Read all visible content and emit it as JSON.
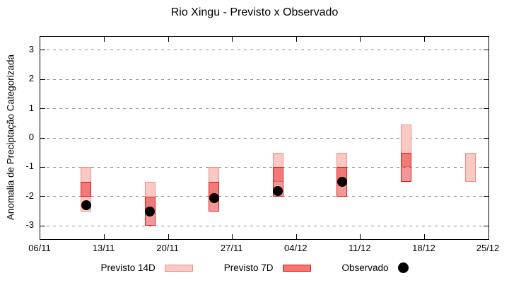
{
  "window": {
    "title": "Rio Xingu - Previsto x Observado"
  },
  "chart_data": {
    "type": "bar",
    "subtype": "forecast-range-boxes-with-observed-scatter",
    "title": "Rio Xingu - Previsto x Observado",
    "xlabel": "",
    "ylabel": "Anomalia de Preciptação Categorizada",
    "ylim": [
      -3.45,
      3.45
    ],
    "yticks": [
      3,
      2,
      1,
      0,
      -1,
      -2,
      -3
    ],
    "grid": true,
    "x_total_days": 49,
    "xticks": [
      {
        "day": 0,
        "label": "06/11"
      },
      {
        "day": 7,
        "label": "13/11"
      },
      {
        "day": 14,
        "label": "20/11"
      },
      {
        "day": 21,
        "label": "27/11"
      },
      {
        "day": 28,
        "label": "04/12"
      },
      {
        "day": 35,
        "label": "11/12"
      },
      {
        "day": 42,
        "label": "18/12"
      },
      {
        "day": 49,
        "label": "25/12"
      }
    ],
    "series": [
      {
        "name": "Previsto 14D",
        "kind": "range-box",
        "fill": "#fbc9c4",
        "border": "#ef8d85",
        "points": [
          {
            "day": 5,
            "date": "11/11",
            "high": -1.0,
            "low": -2.5
          },
          {
            "day": 12,
            "date": "18/11",
            "high": -1.5,
            "low": -2.5
          },
          {
            "day": 19,
            "date": "25/11",
            "high": -1.0,
            "low": -2.0
          },
          {
            "day": 26,
            "date": "02/12",
            "high": -0.5,
            "low": -1.5
          },
          {
            "day": 33,
            "date": "09/12",
            "high": -0.5,
            "low": -1.5
          },
          {
            "day": 40,
            "date": "16/12",
            "high": 0.45,
            "low": -1.0
          },
          {
            "day": 47,
            "date": "23/12",
            "high": -0.5,
            "low": -1.5
          }
        ]
      },
      {
        "name": "Previsto 7D",
        "kind": "range-box",
        "fill": "rgba(227,26,28,0.45)",
        "border": "#e31a1c",
        "points": [
          {
            "day": 5,
            "date": "11/11",
            "high": -1.5,
            "low": -2.0
          },
          {
            "day": 12,
            "date": "18/11",
            "high": -2.0,
            "low": -3.0
          },
          {
            "day": 19,
            "date": "25/11",
            "high": -1.5,
            "low": -2.5
          },
          {
            "day": 26,
            "date": "02/12",
            "high": -1.0,
            "low": -2.0
          },
          {
            "day": 33,
            "date": "09/12",
            "high": -1.0,
            "low": -2.0
          },
          {
            "day": 40,
            "date": "16/12",
            "high": -0.5,
            "low": -1.5
          }
        ]
      },
      {
        "name": "Observado",
        "kind": "scatter",
        "color": "#000000",
        "points": [
          {
            "day": 5,
            "date": "11/11",
            "value": -2.3
          },
          {
            "day": 12,
            "date": "18/11",
            "value": -2.5
          },
          {
            "day": 19,
            "date": "25/11",
            "value": -2.05
          },
          {
            "day": 26,
            "date": "02/12",
            "value": -1.8
          },
          {
            "day": 33,
            "date": "09/12",
            "value": -1.5
          }
        ]
      }
    ],
    "legend": {
      "position": "bottom",
      "items": [
        {
          "label": "Previsto 14D",
          "swatch": "pink-box"
        },
        {
          "label": "Previsto 7D",
          "swatch": "red-box"
        },
        {
          "label": "Observado",
          "swatch": "black-dot"
        }
      ]
    },
    "colors": {
      "pink_fill": "#fbc9c4",
      "pink_border": "#ef8d85",
      "red_fill": "#f8746e",
      "red_border": "#e31a1c",
      "dot": "#000000",
      "grid": "#909090",
      "frame": "#000000"
    }
  }
}
